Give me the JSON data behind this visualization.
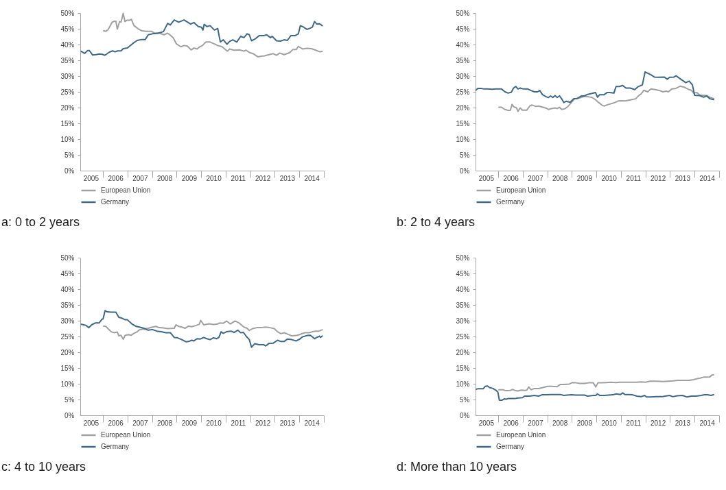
{
  "chart_data": [
    {
      "type": "line",
      "title": "a: 0 to 2 years",
      "legend": "bottom left",
      "xlim": [
        2005.07,
        2015.0
      ],
      "xticks": [
        {
          "value": 2005.5,
          "label": "2005"
        },
        {
          "value": 2006,
          "label": null
        },
        {
          "value": 2006.5,
          "label": "2006"
        },
        {
          "value": 2007,
          "label": null
        },
        {
          "value": 2007.5,
          "label": "2007"
        },
        {
          "value": 2008,
          "label": null
        },
        {
          "value": 2008.5,
          "label": "2008"
        },
        {
          "value": 2009,
          "label": null
        },
        {
          "value": 2009.5,
          "label": "2009"
        },
        {
          "value": 2010,
          "label": null
        },
        {
          "value": 2010.5,
          "label": "2010"
        },
        {
          "value": 2011,
          "label": null
        },
        {
          "value": 2011.5,
          "label": "2011"
        },
        {
          "value": 2012,
          "label": null
        },
        {
          "value": 2012.5,
          "label": "2012"
        },
        {
          "value": 2013,
          "label": null
        },
        {
          "value": 2013.5,
          "label": "2013"
        },
        {
          "value": 2014,
          "label": null
        },
        {
          "value": 2014.5,
          "label": "2014"
        },
        {
          "value": 2015,
          "label": null
        }
      ],
      "ylim": [
        0,
        50
      ],
      "yticks": [
        {
          "value": 0,
          "label": "0%"
        },
        {
          "value": 5,
          "label": "5%"
        },
        {
          "value": 10,
          "label": "10%"
        },
        {
          "value": 15,
          "label": "15%"
        },
        {
          "value": 20,
          "label": "20%"
        },
        {
          "value": 25,
          "label": "25%"
        },
        {
          "value": 30,
          "label": "30%"
        },
        {
          "value": 35,
          "label": "35%"
        },
        {
          "value": 40,
          "label": "40%"
        },
        {
          "value": 45,
          "label": "45%"
        },
        {
          "value": 50,
          "label": "50%"
        }
      ],
      "series": [
        {
          "name": "European Union",
          "color": "#a0a0a0",
          "x": [
            2006.0,
            2006.11,
            2006.2,
            2006.28,
            2006.37,
            2006.46,
            2006.52,
            2006.58,
            2006.67,
            2006.73,
            2006.82,
            2006.89,
            2006.97,
            2007.08,
            2007.15,
            2007.26,
            2007.41,
            2007.57,
            2007.75,
            2007.97,
            2008.1,
            2008.28,
            2008.48,
            2008.63,
            2008.72,
            2008.86,
            2008.99,
            2009.17,
            2009.3,
            2009.43,
            2009.59,
            2009.7,
            2009.83,
            2009.92,
            2010.05,
            2010.19,
            2010.36,
            2010.54,
            2010.67,
            2010.85,
            2011.07,
            2011.16,
            2011.34,
            2011.56,
            2011.74,
            2011.83,
            2011.96,
            2012.14,
            2012.31,
            2012.45,
            2012.58,
            2012.76,
            2012.94,
            2013.07,
            2013.2,
            2013.38,
            2013.6,
            2013.73,
            2013.87,
            2013.96,
            2014.13,
            2014.31,
            2014.49,
            2014.67,
            2014.84,
            2014.95
          ],
          "values": [
            44.4,
            44.2,
            44.7,
            45.8,
            47.1,
            47.4,
            47.4,
            44.9,
            47.3,
            47.1,
            49.9,
            47.3,
            47.7,
            47.7,
            48.0,
            46.0,
            45.1,
            44.4,
            44.2,
            44.2,
            43.6,
            43.7,
            43.1,
            43.6,
            43.1,
            42.1,
            40.2,
            39.3,
            39.7,
            39.5,
            38.3,
            38.9,
            38.6,
            39.2,
            39.7,
            40.8,
            40.8,
            40.2,
            39.7,
            39.3,
            37.9,
            38.6,
            38.2,
            38.3,
            37.9,
            38.2,
            37.5,
            37.0,
            36.1,
            36.3,
            36.4,
            36.8,
            37.1,
            36.6,
            37.3,
            36.8,
            37.4,
            38.4,
            38.4,
            39.4,
            38.6,
            38.8,
            38.7,
            38.2,
            37.7,
            37.9
          ]
        },
        {
          "name": "Germany",
          "color": "#3d6888",
          "x": [
            2005.09,
            2005.25,
            2005.37,
            2005.44,
            2005.57,
            2005.71,
            2005.84,
            2005.97,
            2006.06,
            2006.13,
            2006.26,
            2006.39,
            2006.49,
            2006.59,
            2006.73,
            2006.82,
            2006.99,
            2007.22,
            2007.39,
            2007.57,
            2007.72,
            2007.84,
            2008.01,
            2008.24,
            2008.46,
            2008.63,
            2008.74,
            2008.9,
            2009.08,
            2009.3,
            2009.57,
            2009.7,
            2009.88,
            2010.01,
            2010.07,
            2010.12,
            2010.23,
            2010.36,
            2010.54,
            2010.67,
            2010.78,
            2010.9,
            2011.05,
            2011.16,
            2011.29,
            2011.45,
            2011.61,
            2011.74,
            2011.87,
            2011.96,
            2012.05,
            2012.18,
            2012.36,
            2012.54,
            2012.67,
            2012.82,
            2012.89,
            2013.07,
            2013.23,
            2013.38,
            2013.51,
            2013.65,
            2013.82,
            2013.96,
            2014.04,
            2014.18,
            2014.31,
            2014.44,
            2014.53,
            2014.62,
            2014.71,
            2014.82,
            2014.95
          ],
          "values": [
            37.9,
            37.2,
            38.1,
            38.1,
            36.7,
            36.8,
            37.0,
            36.9,
            36.6,
            36.9,
            37.6,
            38.0,
            37.7,
            38.0,
            38.0,
            38.7,
            38.9,
            40.4,
            41.3,
            41.6,
            41.6,
            43.1,
            43.4,
            43.6,
            44.1,
            46.7,
            46.2,
            47.8,
            47.1,
            47.8,
            46.5,
            47.0,
            45.7,
            45.5,
            44.6,
            46.4,
            45.7,
            46.0,
            44.6,
            45.1,
            40.8,
            41.5,
            40.1,
            41.0,
            41.5,
            40.8,
            42.6,
            42.2,
            43.4,
            43.1,
            41.2,
            41.7,
            42.8,
            42.8,
            43.1,
            42.2,
            42.6,
            41.2,
            41.1,
            41.5,
            41.3,
            42.8,
            42.8,
            43.4,
            46.0,
            45.5,
            44.8,
            45.2,
            45.5,
            47.3,
            46.5,
            46.6,
            45.9
          ]
        }
      ]
    },
    {
      "type": "line",
      "title": "b: 2 to 4 years",
      "legend": "bottom left",
      "xlim": [
        2005.07,
        2015.0
      ],
      "xticks": [
        {
          "value": 2005.5,
          "label": "2005"
        },
        {
          "value": 2006,
          "label": null
        },
        {
          "value": 2006.5,
          "label": "2006"
        },
        {
          "value": 2007,
          "label": null
        },
        {
          "value": 2007.5,
          "label": "2007"
        },
        {
          "value": 2008,
          "label": null
        },
        {
          "value": 2008.5,
          "label": "2008"
        },
        {
          "value": 2009,
          "label": null
        },
        {
          "value": 2009.5,
          "label": "2009"
        },
        {
          "value": 2010,
          "label": null
        },
        {
          "value": 2010.5,
          "label": "2010"
        },
        {
          "value": 2011,
          "label": null
        },
        {
          "value": 2011.5,
          "label": "2011"
        },
        {
          "value": 2012,
          "label": null
        },
        {
          "value": 2012.5,
          "label": "2012"
        },
        {
          "value": 2013,
          "label": null
        },
        {
          "value": 2013.5,
          "label": "2013"
        },
        {
          "value": 2014,
          "label": null
        },
        {
          "value": 2014.5,
          "label": "2014"
        },
        {
          "value": 2015,
          "label": null
        }
      ],
      "ylim": [
        0,
        50
      ],
      "yticks": [
        {
          "value": 0,
          "label": "0%"
        },
        {
          "value": 5,
          "label": "5%"
        },
        {
          "value": 10,
          "label": "10%"
        },
        {
          "value": 15,
          "label": "15%"
        },
        {
          "value": 20,
          "label": "20%"
        },
        {
          "value": 25,
          "label": "25%"
        },
        {
          "value": 30,
          "label": "30%"
        },
        {
          "value": 35,
          "label": "35%"
        },
        {
          "value": 40,
          "label": "40%"
        },
        {
          "value": 45,
          "label": "45%"
        },
        {
          "value": 50,
          "label": "50%"
        }
      ],
      "series": [
        {
          "name": "European Union",
          "color": "#a0a0a0",
          "x": [
            2006.0,
            2006.13,
            2006.27,
            2006.4,
            2006.49,
            2006.56,
            2006.62,
            2006.74,
            2006.8,
            2006.89,
            2006.98,
            2007.16,
            2007.29,
            2007.38,
            2007.51,
            2007.64,
            2007.82,
            2007.96,
            2008.04,
            2008.13,
            2008.31,
            2008.4,
            2008.49,
            2008.58,
            2008.71,
            2008.84,
            2008.98,
            2009.11,
            2009.29,
            2009.51,
            2009.69,
            2009.82,
            2009.96,
            2010.09,
            2010.22,
            2010.31,
            2010.49,
            2010.67,
            2010.89,
            2011.02,
            2011.16,
            2011.29,
            2011.42,
            2011.6,
            2011.73,
            2011.82,
            2011.93,
            2012.09,
            2012.22,
            2012.4,
            2012.58,
            2012.71,
            2012.84,
            2012.93,
            2013.07,
            2013.24,
            2013.42,
            2013.6,
            2013.78,
            2013.87,
            2013.96,
            2014.09,
            2014.22,
            2014.36,
            2014.49,
            2014.62,
            2014.8
          ],
          "values": [
            20.1,
            20.1,
            19.4,
            19.1,
            19.2,
            21.0,
            20.3,
            19.9,
            18.8,
            19.9,
            19.2,
            19.2,
            20.6,
            20.8,
            20.4,
            20.5,
            20.1,
            19.8,
            19.4,
            19.6,
            19.9,
            19.7,
            20.1,
            19.4,
            19.6,
            20.4,
            21.6,
            22.8,
            23.0,
            23.6,
            23.4,
            23.2,
            22.5,
            21.6,
            20.8,
            20.5,
            21.0,
            21.4,
            22.1,
            22.2,
            22.1,
            22.3,
            22.5,
            22.8,
            23.9,
            24.3,
            25.5,
            25.0,
            25.9,
            25.7,
            25.4,
            25.0,
            25.2,
            25.0,
            25.9,
            26.1,
            26.8,
            26.4,
            25.7,
            25.5,
            24.6,
            24.8,
            23.9,
            23.9,
            23.8,
            23.3,
            22.8
          ]
        },
        {
          "name": "Germany",
          "color": "#3d6888",
          "x": [
            2005.07,
            2005.16,
            2005.29,
            2005.42,
            2005.56,
            2005.73,
            2005.91,
            2006.04,
            2006.13,
            2006.27,
            2006.4,
            2006.53,
            2006.62,
            2006.71,
            2006.8,
            2006.89,
            2007.02,
            2007.2,
            2007.33,
            2007.47,
            2007.6,
            2007.69,
            2007.8,
            2007.96,
            2008.04,
            2008.13,
            2008.22,
            2008.31,
            2008.4,
            2008.49,
            2008.58,
            2008.67,
            2008.76,
            2008.93,
            2009.07,
            2009.2,
            2009.38,
            2009.51,
            2009.64,
            2009.82,
            2009.96,
            2010.04,
            2010.13,
            2010.31,
            2010.44,
            2010.53,
            2010.71,
            2010.8,
            2010.93,
            2011.07,
            2011.2,
            2011.38,
            2011.56,
            2011.69,
            2011.87,
            2011.98,
            2012.09,
            2012.22,
            2012.36,
            2012.53,
            2012.76,
            2012.89,
            2012.98,
            2013.16,
            2013.24,
            2013.42,
            2013.64,
            2013.78,
            2013.91,
            2014.0,
            2014.22,
            2014.36,
            2014.49,
            2014.62,
            2014.8
          ],
          "values": [
            25.4,
            26.1,
            26.1,
            25.9,
            25.9,
            25.8,
            25.9,
            25.9,
            25.9,
            25.0,
            24.6,
            24.9,
            26.2,
            26.7,
            25.9,
            26.2,
            25.9,
            25.9,
            25.4,
            25.0,
            25.0,
            25.4,
            24.1,
            23.4,
            23.2,
            23.7,
            23.2,
            23.8,
            23.2,
            23.7,
            22.8,
            21.6,
            22.0,
            21.7,
            22.8,
            22.8,
            23.7,
            23.7,
            24.2,
            24.5,
            24.8,
            23.3,
            24.1,
            24.1,
            24.8,
            24.8,
            24.6,
            26.7,
            26.7,
            27.0,
            26.2,
            26.2,
            25.7,
            26.6,
            27.2,
            31.3,
            30.9,
            30.4,
            29.7,
            29.6,
            29.7,
            29.0,
            29.6,
            29.7,
            30.1,
            29.1,
            27.9,
            28.4,
            27.2,
            23.9,
            23.8,
            23.3,
            23.7,
            22.8,
            22.5
          ]
        }
      ]
    },
    {
      "type": "line",
      "title": "c: 4 to 10 years",
      "legend": "bottom left",
      "xlim": [
        2005.07,
        2015.0
      ],
      "xticks": [
        {
          "value": 2005.5,
          "label": "2005"
        },
        {
          "value": 2006,
          "label": null
        },
        {
          "value": 2006.5,
          "label": "2006"
        },
        {
          "value": 2007,
          "label": null
        },
        {
          "value": 2007.5,
          "label": "2007"
        },
        {
          "value": 2008,
          "label": null
        },
        {
          "value": 2008.5,
          "label": "2008"
        },
        {
          "value": 2009,
          "label": null
        },
        {
          "value": 2009.5,
          "label": "2009"
        },
        {
          "value": 2010,
          "label": null
        },
        {
          "value": 2010.5,
          "label": "2010"
        },
        {
          "value": 2011,
          "label": null
        },
        {
          "value": 2011.5,
          "label": "2011"
        },
        {
          "value": 2012,
          "label": null
        },
        {
          "value": 2012.5,
          "label": "2012"
        },
        {
          "value": 2013,
          "label": null
        },
        {
          "value": 2013.5,
          "label": "2013"
        },
        {
          "value": 2014,
          "label": null
        },
        {
          "value": 2014.5,
          "label": "2014"
        },
        {
          "value": 2015,
          "label": null
        }
      ],
      "ylim": [
        0,
        50
      ],
      "yticks": [
        {
          "value": 0,
          "label": "0%"
        },
        {
          "value": 5,
          "label": "5%"
        },
        {
          "value": 10,
          "label": "10%"
        },
        {
          "value": 15,
          "label": "15%"
        },
        {
          "value": 20,
          "label": "20%"
        },
        {
          "value": 25,
          "label": "25%"
        },
        {
          "value": 30,
          "label": "30%"
        },
        {
          "value": 35,
          "label": "35%"
        },
        {
          "value": 40,
          "label": "40%"
        },
        {
          "value": 45,
          "label": "45%"
        },
        {
          "value": 50,
          "label": "50%"
        }
      ],
      "series": [
        {
          "name": "European Union",
          "color": "#a0a0a0",
          "x": [
            2006.0,
            2006.11,
            2006.2,
            2006.33,
            2006.46,
            2006.58,
            2006.64,
            2006.73,
            2006.82,
            2006.9,
            2007.04,
            2007.14,
            2007.26,
            2007.39,
            2007.48,
            2007.66,
            2007.84,
            2008.01,
            2008.15,
            2008.28,
            2008.46,
            2008.63,
            2008.9,
            2008.97,
            2009.08,
            2009.21,
            2009.34,
            2009.48,
            2009.61,
            2009.79,
            2009.92,
            2009.98,
            2010.1,
            2010.32,
            2010.5,
            2010.63,
            2010.76,
            2010.9,
            2011.03,
            2011.19,
            2011.38,
            2011.56,
            2011.74,
            2011.87,
            2011.96,
            2012.09,
            2012.27,
            2012.45,
            2012.63,
            2012.8,
            2012.98,
            2013.11,
            2013.25,
            2013.38,
            2013.51,
            2013.69,
            2013.87,
            2014.04,
            2014.22,
            2014.4,
            2014.53,
            2014.67,
            2014.8,
            2014.95
          ],
          "values": [
            28.3,
            28.2,
            27.5,
            26.5,
            26.2,
            26.4,
            25.2,
            25.4,
            24.1,
            25.4,
            25.6,
            25.4,
            26.0,
            26.5,
            27.1,
            27.4,
            27.6,
            28.0,
            28.2,
            27.8,
            27.7,
            27.5,
            27.6,
            28.7,
            28.2,
            28.0,
            27.6,
            28.3,
            28.1,
            28.5,
            28.9,
            30.1,
            28.7,
            29.0,
            28.8,
            28.9,
            29.3,
            29.2,
            29.9,
            29.0,
            29.9,
            29.2,
            28.0,
            27.6,
            26.9,
            27.5,
            27.8,
            27.8,
            28.0,
            27.8,
            27.5,
            26.5,
            25.9,
            26.2,
            25.8,
            25.2,
            25.3,
            25.7,
            26.2,
            26.2,
            26.5,
            26.7,
            26.7,
            27.2
          ]
        },
        {
          "name": "Germany",
          "color": "#3d6888",
          "x": [
            2005.09,
            2005.22,
            2005.31,
            2005.42,
            2005.53,
            2005.69,
            2005.84,
            2005.96,
            2006.0,
            2006.08,
            2006.17,
            2006.33,
            2006.52,
            2006.64,
            2006.77,
            2006.9,
            2006.99,
            2007.17,
            2007.35,
            2007.48,
            2007.66,
            2007.84,
            2008.01,
            2008.19,
            2008.37,
            2008.55,
            2008.74,
            2008.9,
            2009.03,
            2009.21,
            2009.39,
            2009.52,
            2009.61,
            2009.7,
            2009.83,
            2009.96,
            2010.1,
            2010.23,
            2010.36,
            2010.5,
            2010.63,
            2010.72,
            2010.81,
            2010.9,
            2011.03,
            2011.21,
            2011.34,
            2011.49,
            2011.61,
            2011.72,
            2011.83,
            2011.96,
            2012.05,
            2012.18,
            2012.36,
            2012.54,
            2012.63,
            2012.76,
            2012.94,
            2013.11,
            2013.25,
            2013.38,
            2013.51,
            2013.69,
            2013.87,
            2014.0,
            2014.13,
            2014.31,
            2014.44,
            2014.53,
            2014.62,
            2014.71,
            2014.82,
            2014.87,
            2014.95
          ],
          "values": [
            28.9,
            28.7,
            28.5,
            27.8,
            28.7,
            29.3,
            29.3,
            30.5,
            30.6,
            33.2,
            32.8,
            32.7,
            32.7,
            31.1,
            30.8,
            30.3,
            30.3,
            29.0,
            28.2,
            28.0,
            27.6,
            27.0,
            27.2,
            26.7,
            26.5,
            26.2,
            26.2,
            24.7,
            24.6,
            24.0,
            23.3,
            23.5,
            23.8,
            23.6,
            24.3,
            24.2,
            24.7,
            24.3,
            24.0,
            24.6,
            24.3,
            24.7,
            26.5,
            26.0,
            26.5,
            26.7,
            26.3,
            27.0,
            26.2,
            26.3,
            25.1,
            24.0,
            21.6,
            22.7,
            22.4,
            22.4,
            22.0,
            22.8,
            22.9,
            23.8,
            23.4,
            23.4,
            24.2,
            24.0,
            23.6,
            24.1,
            24.9,
            25.3,
            25.4,
            24.9,
            24.3,
            24.7,
            25.1,
            24.7,
            25.3
          ]
        }
      ]
    },
    {
      "type": "line",
      "title": "d: More than 10 years",
      "legend": "bottom left",
      "xlim": [
        2005.07,
        2015.0
      ],
      "xticks": [
        {
          "value": 2005.5,
          "label": "2005"
        },
        {
          "value": 2006,
          "label": null
        },
        {
          "value": 2006.5,
          "label": "2006"
        },
        {
          "value": 2007,
          "label": null
        },
        {
          "value": 2007.5,
          "label": "2007"
        },
        {
          "value": 2008,
          "label": null
        },
        {
          "value": 2008.5,
          "label": "2008"
        },
        {
          "value": 2009,
          "label": null
        },
        {
          "value": 2009.5,
          "label": "2009"
        },
        {
          "value": 2010,
          "label": null
        },
        {
          "value": 2010.5,
          "label": "2010"
        },
        {
          "value": 2011,
          "label": null
        },
        {
          "value": 2011.5,
          "label": "2011"
        },
        {
          "value": 2012,
          "label": null
        },
        {
          "value": 2012.5,
          "label": "2012"
        },
        {
          "value": 2013,
          "label": null
        },
        {
          "value": 2013.5,
          "label": "2013"
        },
        {
          "value": 2014,
          "label": null
        },
        {
          "value": 2014.5,
          "label": "2014"
        },
        {
          "value": 2015,
          "label": null
        }
      ],
      "ylim": [
        0,
        50
      ],
      "yticks": [
        {
          "value": 0,
          "label": "0%"
        },
        {
          "value": 5,
          "label": "5%"
        },
        {
          "value": 10,
          "label": "10%"
        },
        {
          "value": 15,
          "label": "15%"
        },
        {
          "value": 20,
          "label": "20%"
        },
        {
          "value": 25,
          "label": "25%"
        },
        {
          "value": 30,
          "label": "30%"
        },
        {
          "value": 35,
          "label": "35%"
        },
        {
          "value": 40,
          "label": "40%"
        },
        {
          "value": 45,
          "label": "45%"
        },
        {
          "value": 50,
          "label": "50%"
        }
      ],
      "series": [
        {
          "name": "European Union",
          "color": "#a0a0a0",
          "x": [
            2006.0,
            2006.18,
            2006.31,
            2006.49,
            2006.58,
            2006.67,
            2006.8,
            2006.93,
            2007.07,
            2007.16,
            2007.24,
            2007.33,
            2007.47,
            2007.64,
            2007.82,
            2008.0,
            2008.18,
            2008.4,
            2008.53,
            2008.67,
            2008.89,
            2009.02,
            2009.16,
            2009.33,
            2009.51,
            2009.69,
            2009.87,
            2009.97,
            2010.06,
            2010.22,
            2010.4,
            2010.58,
            2010.8,
            2010.93,
            2011.29,
            2011.64,
            2011.82,
            2012.0,
            2012.18,
            2012.44,
            2012.71,
            2012.93,
            2013.11,
            2013.33,
            2013.6,
            2013.78,
            2013.96,
            2014.09,
            2014.22,
            2014.36,
            2014.49,
            2014.62,
            2014.71,
            2014.8
          ],
          "values": [
            8.1,
            8.1,
            7.8,
            7.9,
            8.2,
            7.9,
            7.7,
            8.0,
            7.9,
            8.0,
            9.0,
            8.1,
            8.5,
            8.5,
            8.8,
            9.2,
            9.2,
            9.1,
            9.8,
            9.8,
            9.9,
            10.4,
            10.3,
            10.1,
            10.1,
            10.3,
            10.3,
            9.0,
            10.3,
            10.3,
            10.4,
            10.5,
            10.4,
            10.5,
            10.5,
            10.5,
            10.6,
            10.5,
            10.8,
            10.8,
            10.7,
            10.8,
            10.9,
            11.1,
            11.1,
            11.1,
            11.3,
            11.6,
            11.8,
            12.1,
            12.1,
            12.2,
            12.8,
            12.9
          ]
        },
        {
          "name": "Germany",
          "color": "#3d6888",
          "x": [
            2005.07,
            2005.16,
            2005.38,
            2005.47,
            2005.56,
            2005.64,
            2005.78,
            2005.91,
            2005.98,
            2006.04,
            2006.15,
            2006.24,
            2006.31,
            2006.4,
            2006.67,
            2006.8,
            2006.98,
            2007.07,
            2007.29,
            2007.47,
            2007.64,
            2007.78,
            2007.96,
            2008.13,
            2008.27,
            2008.53,
            2008.67,
            2008.8,
            2008.98,
            2009.16,
            2009.38,
            2009.51,
            2009.64,
            2009.87,
            2009.97,
            2010.04,
            2010.13,
            2010.31,
            2010.49,
            2010.67,
            2010.8,
            2010.98,
            2011.07,
            2011.16,
            2011.29,
            2011.47,
            2011.64,
            2011.82,
            2011.96,
            2012.04,
            2012.22,
            2012.44,
            2012.67,
            2012.8,
            2012.98,
            2013.11,
            2013.29,
            2013.51,
            2013.69,
            2013.87,
            2014.04,
            2014.27,
            2014.4,
            2014.53,
            2014.67,
            2014.8
          ],
          "values": [
            8.2,
            8.4,
            8.4,
            9.2,
            9.3,
            8.8,
            8.5,
            7.9,
            7.4,
            4.8,
            4.8,
            5.2,
            5.1,
            5.3,
            5.3,
            5.5,
            5.6,
            6.1,
            6.1,
            6.3,
            6.1,
            6.5,
            6.5,
            6.6,
            6.6,
            6.6,
            6.3,
            6.4,
            6.5,
            6.4,
            6.4,
            6.4,
            6.1,
            6.3,
            6.3,
            6.8,
            6.3,
            6.3,
            6.4,
            6.5,
            6.8,
            6.6,
            7.1,
            6.6,
            6.6,
            6.5,
            6.1,
            5.9,
            6.3,
            5.8,
            5.8,
            5.9,
            5.9,
            6.1,
            6.3,
            5.9,
            6.2,
            6.3,
            5.8,
            6.1,
            6.1,
            6.3,
            6.5,
            6.5,
            6.3,
            6.6
          ]
        }
      ]
    }
  ]
}
